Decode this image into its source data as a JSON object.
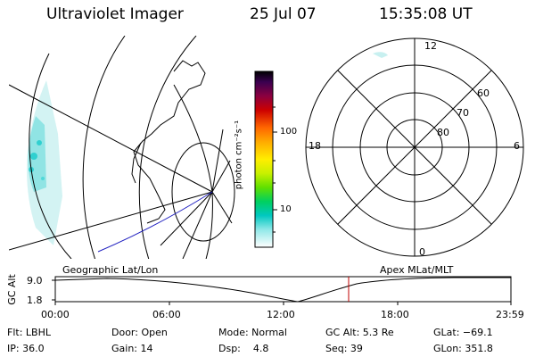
{
  "header": {
    "title": "Ultraviolet Imager",
    "date": "25 Jul 07",
    "time": "15:35:08 UT"
  },
  "polar_plot": {
    "mlt_labels": {
      "top": "12",
      "left": "18",
      "right": "6",
      "bottom": "0"
    },
    "lat_labels": [
      "60",
      "70",
      "80"
    ]
  },
  "colorbar": {
    "unit": "photon cm⁻²s⁻¹",
    "ticks": [
      "100",
      "10"
    ]
  },
  "orbit": {
    "y_label": "GC Alt",
    "y_ticks": [
      "9.0",
      "1.8"
    ],
    "left_label": "Geographic Lat/Lon",
    "right_label": "Apex MLat/MLT",
    "time_ticks": [
      "00:00",
      "06:00",
      "12:00",
      "18:00",
      "23:59"
    ]
  },
  "footer": {
    "row1": [
      "Flt: LBHL",
      "Door: Open",
      "Mode: Normal",
      "GC Alt: 5.3 Re",
      "GLat: −69.1"
    ],
    "row2": [
      "IP: 36.0",
      "Gain: 14",
      "Dsp:    4.8",
      "Seq: 39",
      "GLon: 351.8"
    ]
  },
  "colors": {
    "grid": "#000000",
    "track": "#2020c0",
    "marker": "#c00000",
    "aurora": "#7fe0e0"
  }
}
